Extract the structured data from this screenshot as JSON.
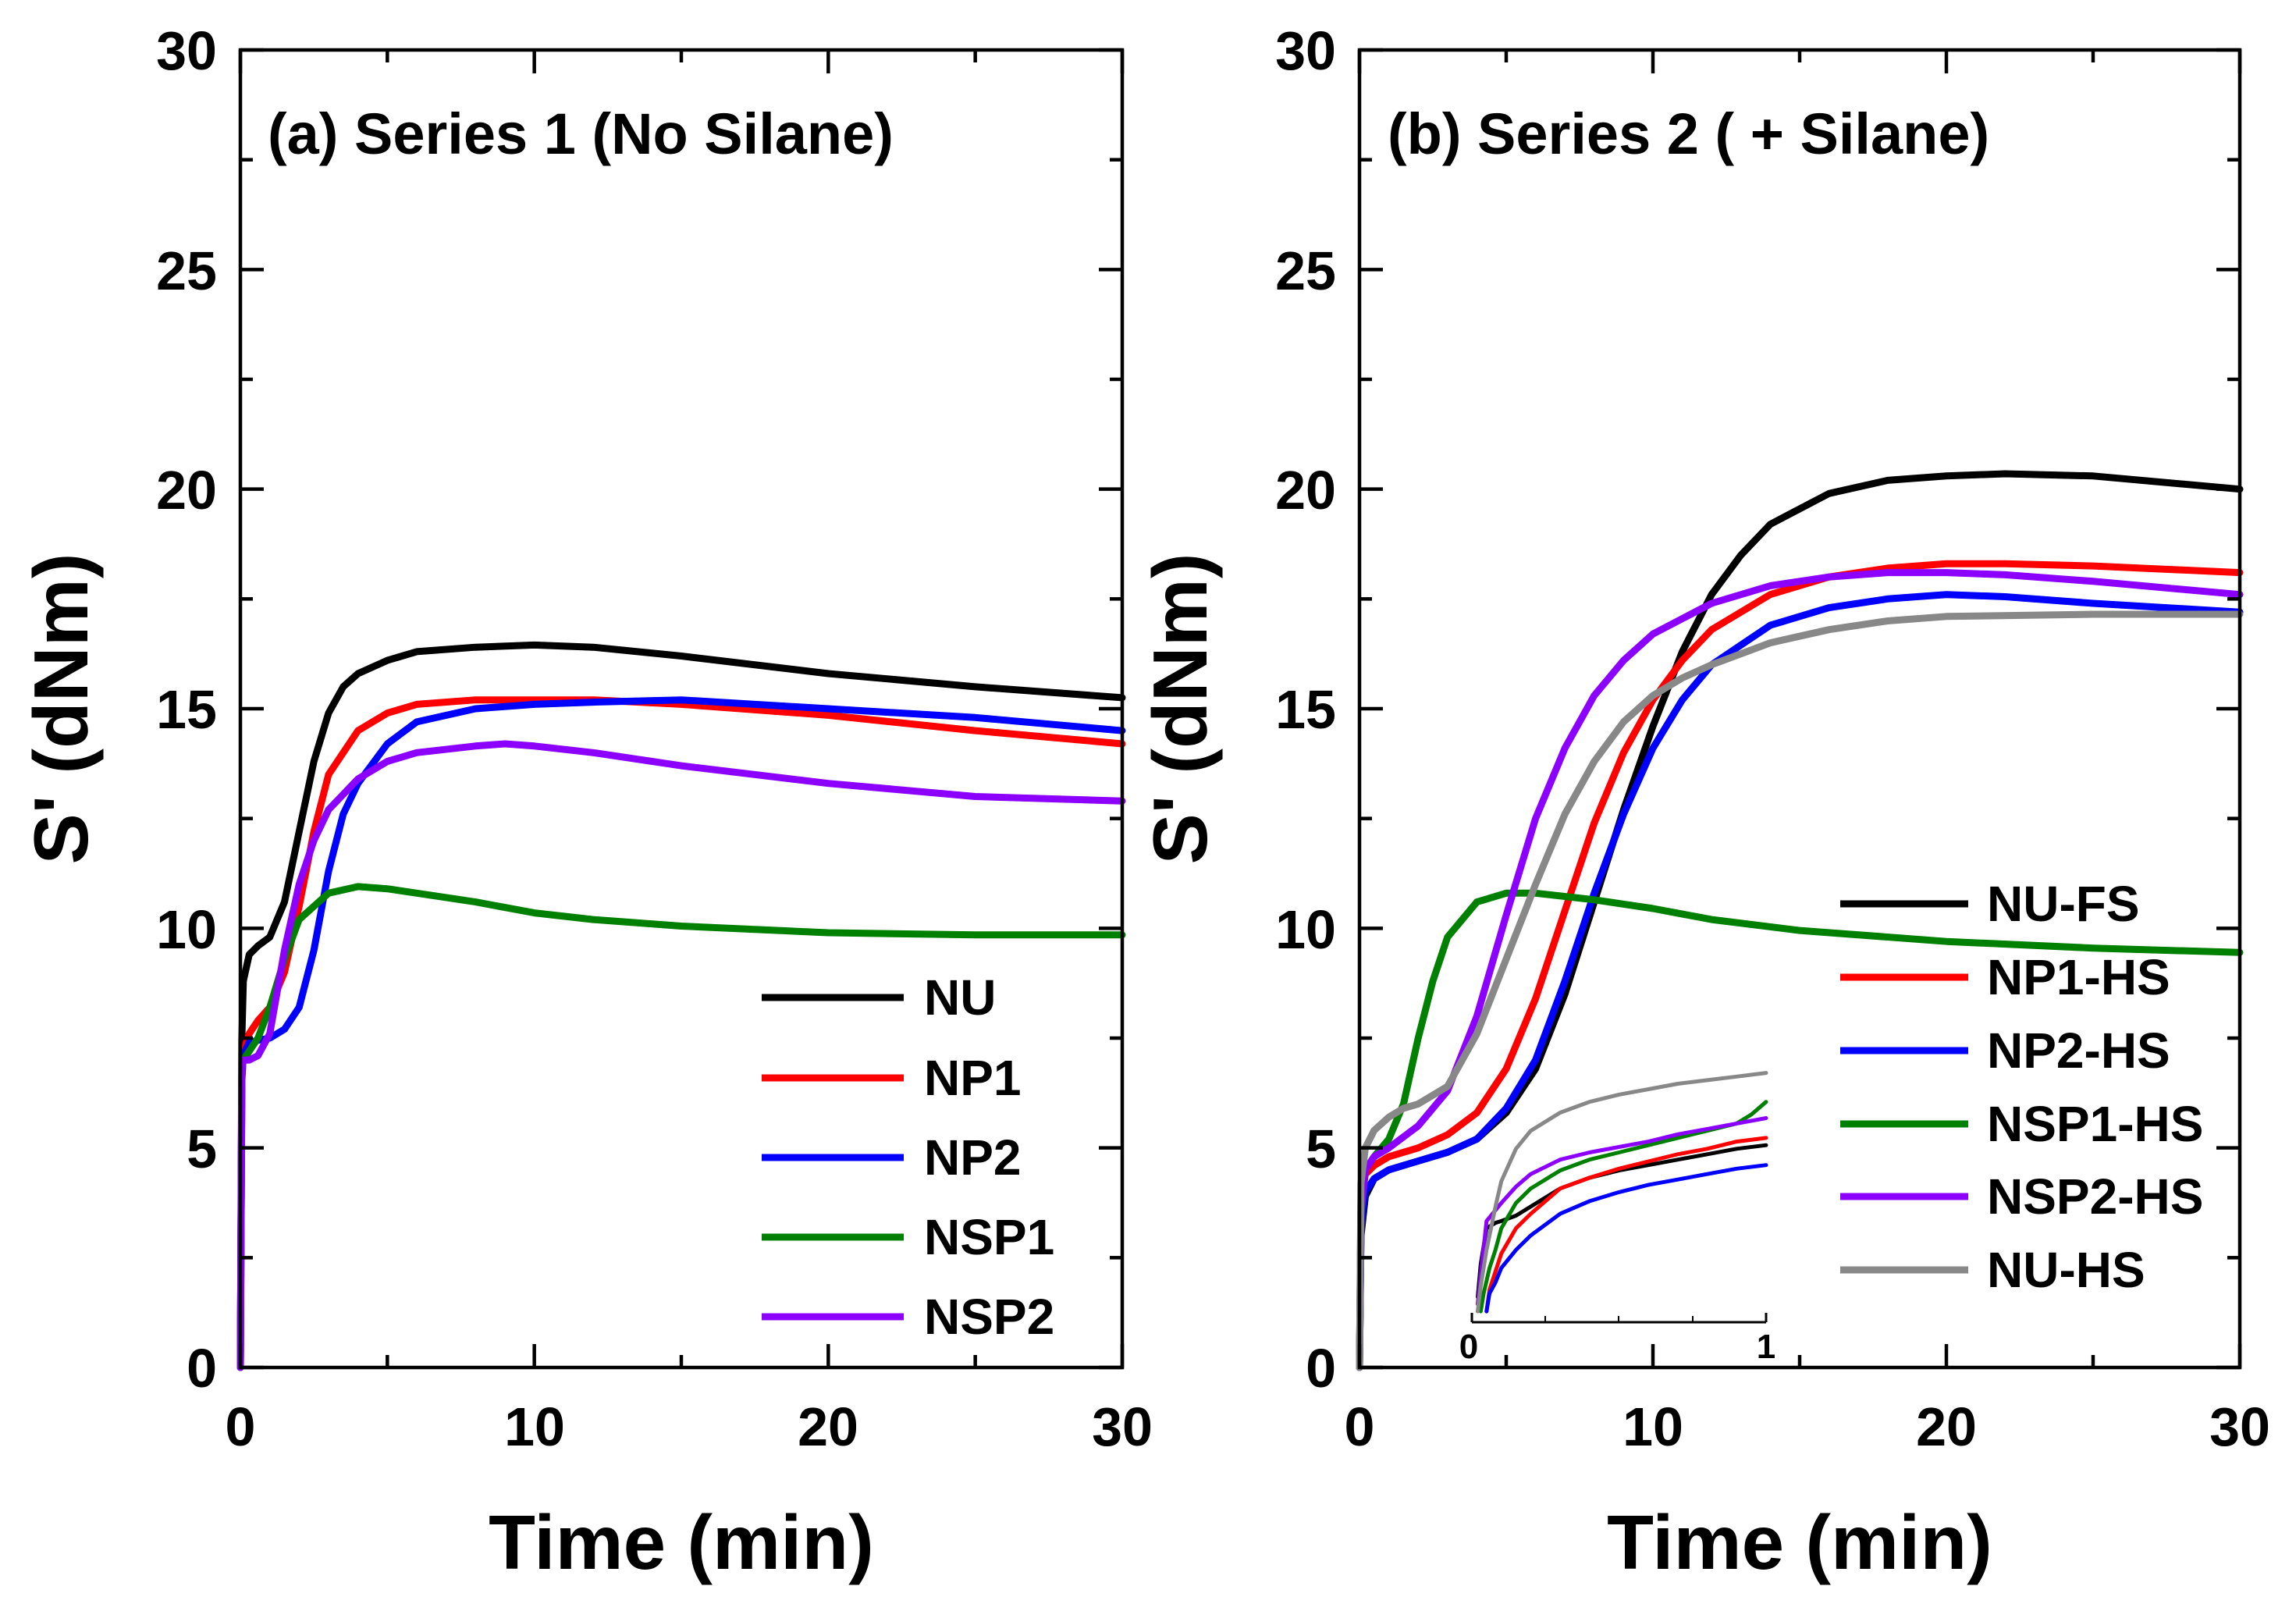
{
  "chart_data": [
    {
      "type": "line",
      "title": "(a) Series 1 (No Silane)",
      "xlabel": "Time (min)",
      "ylabel": "S' (dNm)",
      "xlim": [
        0,
        30
      ],
      "ylim": [
        0,
        30
      ],
      "xticks": [
        "0",
        "10",
        "20",
        "30"
      ],
      "yticks": [
        "0",
        "5",
        "10",
        "15",
        "20",
        "25",
        "30"
      ],
      "legend_position": "bottom-right",
      "series": [
        {
          "name": "NU",
          "color": "#000000",
          "x": [
            0,
            0.05,
            0.1,
            0.3,
            0.6,
            1.0,
            1.5,
            2.0,
            2.5,
            3.0,
            3.5,
            4.0,
            5.0,
            6.0,
            8.0,
            10.0,
            12.0,
            15.0,
            20.0,
            25.0,
            30.0
          ],
          "y": [
            0,
            7.5,
            8.8,
            9.4,
            9.6,
            9.8,
            10.6,
            12.2,
            13.8,
            14.9,
            15.5,
            15.8,
            16.1,
            16.3,
            16.4,
            16.45,
            16.4,
            16.2,
            15.8,
            15.5,
            15.25
          ]
        },
        {
          "name": "NP1",
          "color": "#ff0000",
          "x": [
            0,
            0.05,
            0.1,
            0.3,
            0.6,
            1.0,
            1.5,
            2.0,
            2.5,
            3.0,
            4.0,
            5.0,
            6.0,
            8.0,
            10.0,
            12.0,
            15.0,
            20.0,
            25.0,
            30.0
          ],
          "y": [
            0,
            6.5,
            7.2,
            7.6,
            7.9,
            8.2,
            9.0,
            10.5,
            12.2,
            13.5,
            14.5,
            14.9,
            15.1,
            15.2,
            15.2,
            15.2,
            15.1,
            14.85,
            14.5,
            14.2
          ]
        },
        {
          "name": "NP2",
          "color": "#0000ff",
          "x": [
            0,
            0.05,
            0.1,
            0.3,
            0.6,
            1.0,
            1.5,
            2.0,
            2.5,
            3.0,
            3.5,
            4.0,
            5.0,
            6.0,
            8.0,
            10.0,
            12.0,
            15.0,
            20.0,
            25.0,
            30.0
          ],
          "y": [
            0,
            6.6,
            7.1,
            7.4,
            7.45,
            7.5,
            7.7,
            8.2,
            9.5,
            11.3,
            12.6,
            13.3,
            14.2,
            14.7,
            15.0,
            15.1,
            15.15,
            15.2,
            15.0,
            14.8,
            14.5
          ]
        },
        {
          "name": "NSP1",
          "color": "#008000",
          "x": [
            0,
            0.05,
            0.1,
            0.3,
            0.6,
            1.0,
            1.5,
            2.0,
            3.0,
            4.0,
            5.0,
            6.0,
            8.0,
            10.0,
            12.0,
            15.0,
            20.0,
            25.0,
            30.0
          ],
          "y": [
            0,
            6.8,
            7.0,
            7.2,
            7.5,
            8.2,
            9.3,
            10.2,
            10.8,
            10.95,
            10.9,
            10.8,
            10.6,
            10.35,
            10.2,
            10.05,
            9.9,
            9.85,
            9.85
          ]
        },
        {
          "name": "NSP2",
          "color": "#8b00ff",
          "x": [
            0,
            0.05,
            0.1,
            0.3,
            0.6,
            1.0,
            1.5,
            2.0,
            2.5,
            3.0,
            4.0,
            5.0,
            6.0,
            8.0,
            9.0,
            10.0,
            12.0,
            15.0,
            20.0,
            25.0,
            30.0
          ],
          "y": [
            0,
            6.8,
            7.0,
            7.0,
            7.1,
            7.6,
            9.5,
            11.0,
            12.0,
            12.7,
            13.4,
            13.8,
            14.0,
            14.15,
            14.2,
            14.15,
            14.0,
            13.7,
            13.3,
            13.0,
            12.9
          ]
        }
      ]
    },
    {
      "type": "line",
      "title": "(b) Series 2 ( + Silane)",
      "xlabel": "Time (min)",
      "ylabel": "S' (dNm)",
      "xlim": [
        0,
        30
      ],
      "ylim": [
        0,
        30
      ],
      "xticks": [
        "0",
        "10",
        "20",
        "30"
      ],
      "yticks": [
        "0",
        "5",
        "10",
        "15",
        "20",
        "25",
        "30"
      ],
      "legend_position": "right",
      "series": [
        {
          "name": "NU-FS",
          "color": "#000000",
          "x": [
            0,
            0.05,
            0.2,
            0.5,
            1.0,
            2.0,
            3.0,
            4.0,
            5.0,
            6.0,
            7.0,
            8.0,
            9.0,
            10.0,
            11.0,
            12.0,
            13.0,
            14.0,
            16.0,
            18.0,
            20.0,
            22.0,
            25.0,
            30.0
          ],
          "y": [
            0,
            3.0,
            3.9,
            4.3,
            4.5,
            4.7,
            4.9,
            5.2,
            5.8,
            6.8,
            8.5,
            10.6,
            12.7,
            14.6,
            16.3,
            17.6,
            18.5,
            19.2,
            19.9,
            20.2,
            20.3,
            20.35,
            20.3,
            20.0
          ]
        },
        {
          "name": "NP1-HS",
          "color": "#ff0000",
          "x": [
            0,
            0.05,
            0.2,
            0.5,
            1.0,
            2.0,
            3.0,
            4.0,
            5.0,
            6.0,
            7.0,
            8.0,
            9.0,
            10.0,
            11.0,
            12.0,
            14.0,
            16.0,
            18.0,
            20.0,
            22.0,
            25.0,
            30.0
          ],
          "y": [
            0,
            3.8,
            4.4,
            4.6,
            4.8,
            5.0,
            5.3,
            5.8,
            6.8,
            8.4,
            10.4,
            12.4,
            14.0,
            15.2,
            16.1,
            16.8,
            17.6,
            18.0,
            18.2,
            18.3,
            18.3,
            18.25,
            18.1
          ]
        },
        {
          "name": "NP2-HS",
          "color": "#0000ff",
          "x": [
            0,
            0.05,
            0.2,
            0.5,
            1.0,
            2.0,
            3.0,
            4.0,
            5.0,
            6.0,
            7.0,
            8.0,
            9.0,
            10.0,
            11.0,
            12.0,
            14.0,
            16.0,
            18.0,
            20.0,
            22.0,
            25.0,
            30.0
          ],
          "y": [
            0,
            3.2,
            4.0,
            4.3,
            4.5,
            4.7,
            4.9,
            5.2,
            5.9,
            7.0,
            8.8,
            10.8,
            12.6,
            14.1,
            15.2,
            16.0,
            16.9,
            17.3,
            17.5,
            17.6,
            17.55,
            17.4,
            17.2
          ]
        },
        {
          "name": "NSP1-HS",
          "color": "#008000",
          "x": [
            0,
            0.05,
            0.2,
            0.5,
            1.0,
            1.5,
            2.0,
            2.5,
            3.0,
            4.0,
            5.0,
            6.0,
            8.0,
            10.0,
            12.0,
            15.0,
            20.0,
            25.0,
            30.0
          ],
          "y": [
            0,
            3.5,
            4.5,
            4.8,
            5.2,
            6.0,
            7.5,
            8.8,
            9.8,
            10.6,
            10.8,
            10.8,
            10.65,
            10.45,
            10.2,
            9.95,
            9.7,
            9.55,
            9.45
          ]
        },
        {
          "name": "NSP2-HS",
          "color": "#8b00ff",
          "x": [
            0,
            0.05,
            0.2,
            0.5,
            1.0,
            2.0,
            3.0,
            4.0,
            5.0,
            6.0,
            7.0,
            8.0,
            9.0,
            10.0,
            12.0,
            14.0,
            16.0,
            18.0,
            20.0,
            22.0,
            25.0,
            30.0
          ],
          "y": [
            0,
            3.6,
            4.5,
            4.8,
            5.0,
            5.5,
            6.3,
            8.0,
            10.3,
            12.5,
            14.1,
            15.3,
            16.1,
            16.7,
            17.4,
            17.8,
            18.0,
            18.1,
            18.1,
            18.05,
            17.9,
            17.6
          ]
        },
        {
          "name": "NU-HS",
          "color": "#888888",
          "x": [
            0,
            0.05,
            0.2,
            0.5,
            1.0,
            1.5,
            2.0,
            3.0,
            4.0,
            5.0,
            6.0,
            7.0,
            8.0,
            9.0,
            10.0,
            11.0,
            12.0,
            14.0,
            16.0,
            18.0,
            20.0,
            25.0,
            30.0
          ],
          "y": [
            0,
            4.2,
            5.0,
            5.4,
            5.7,
            5.9,
            6.0,
            6.4,
            7.6,
            9.3,
            11.0,
            12.6,
            13.8,
            14.7,
            15.3,
            15.7,
            16.0,
            16.5,
            16.8,
            17.0,
            17.1,
            17.15,
            17.15
          ]
        }
      ],
      "inset": {
        "xlim": [
          0,
          1
        ],
        "ylim": [
          0,
          7
        ],
        "xticks": [
          "0",
          "1"
        ],
        "series": [
          {
            "name": "NU-FS",
            "color": "#000000",
            "x": [
              0.02,
              0.03,
              0.05,
              0.08,
              0.1,
              0.15,
              0.2,
              0.3,
              0.4,
              0.5,
              0.6,
              0.7,
              0.8,
              0.9,
              1.0
            ],
            "y": [
              0.7,
              1.6,
              2.6,
              2.75,
              2.8,
              2.95,
              3.2,
              3.7,
              4.0,
              4.2,
              4.35,
              4.5,
              4.65,
              4.8,
              4.9
            ]
          },
          {
            "name": "NP1-HS",
            "color": "#ff0000",
            "x": [
              0.05,
              0.06,
              0.08,
              0.1,
              0.15,
              0.2,
              0.3,
              0.4,
              0.5,
              0.6,
              0.7,
              0.8,
              0.9,
              1.0
            ],
            "y": [
              0.3,
              0.9,
              1.4,
              1.9,
              2.6,
              3.0,
              3.7,
              4.0,
              4.25,
              4.45,
              4.65,
              4.8,
              5.0,
              5.1
            ]
          },
          {
            "name": "NP2-HS",
            "color": "#0000ff",
            "x": [
              0.05,
              0.06,
              0.08,
              0.1,
              0.15,
              0.2,
              0.3,
              0.4,
              0.5,
              0.6,
              0.7,
              0.8,
              0.9,
              1.0
            ],
            "y": [
              0.3,
              0.8,
              1.1,
              1.5,
              2.0,
              2.4,
              3.0,
              3.35,
              3.6,
              3.8,
              3.95,
              4.1,
              4.25,
              4.35
            ]
          },
          {
            "name": "NSP1-HS",
            "color": "#008000",
            "x": [
              0.03,
              0.04,
              0.06,
              0.08,
              0.1,
              0.15,
              0.2,
              0.3,
              0.4,
              0.5,
              0.6,
              0.7,
              0.8,
              0.9,
              0.95,
              1.0
            ],
            "y": [
              0.3,
              0.8,
              1.5,
              2.0,
              2.6,
              3.3,
              3.7,
              4.2,
              4.5,
              4.7,
              4.9,
              5.1,
              5.3,
              5.5,
              5.75,
              6.1
            ]
          },
          {
            "name": "NSP2-HS",
            "color": "#8b00ff",
            "x": [
              0.02,
              0.03,
              0.05,
              0.08,
              0.1,
              0.15,
              0.2,
              0.3,
              0.4,
              0.5,
              0.6,
              0.7,
              0.8,
              0.9,
              1.0
            ],
            "y": [
              0.5,
              1.3,
              2.8,
              3.1,
              3.3,
              3.75,
              4.1,
              4.5,
              4.7,
              4.85,
              5.0,
              5.2,
              5.35,
              5.5,
              5.65
            ]
          },
          {
            "name": "NU-HS",
            "color": "#888888",
            "x": [
              0.02,
              0.03,
              0.05,
              0.08,
              0.1,
              0.15,
              0.2,
              0.3,
              0.4,
              0.5,
              0.6,
              0.7,
              0.8,
              0.9,
              1.0
            ],
            "y": [
              0.3,
              1.0,
              2.0,
              3.2,
              3.9,
              4.8,
              5.3,
              5.8,
              6.1,
              6.3,
              6.45,
              6.6,
              6.7,
              6.8,
              6.9
            ]
          }
        ]
      }
    }
  ]
}
